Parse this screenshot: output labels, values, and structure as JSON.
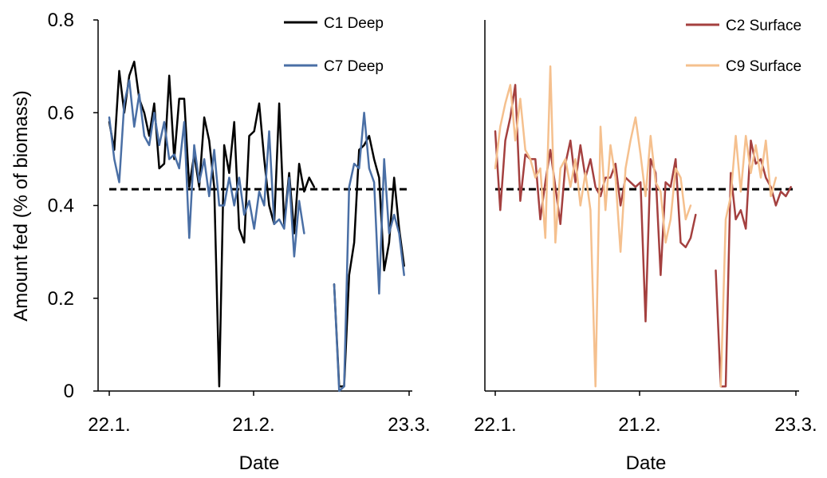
{
  "chart_data": [
    {
      "type": "line",
      "panel": "left",
      "xlabel": "Date",
      "ylabel": "Amount fed (% of biomass)",
      "x_tick_labels": [
        "22.1.",
        "21.2.",
        "23.3."
      ],
      "y_tick_labels": [
        "0",
        "0.2",
        "0.4",
        "0.6",
        "0.8"
      ],
      "ylim": [
        0,
        0.8
      ],
      "xlim": [
        "22.1.",
        "23.3."
      ],
      "x_unit": "day index from 22.1. (0 = 22.1., 30 = 21.2., 60 = 23.3.)",
      "reference_line": {
        "y": 0.435,
        "style": "dashed",
        "color": "#000000"
      },
      "legend_position": "top-right",
      "series": [
        {
          "name": "C1 Deep",
          "color": "#000000",
          "segments": [
            [
              [
                0,
                0.58
              ],
              [
                1,
                0.52
              ],
              [
                2,
                0.69
              ],
              [
                3,
                0.6
              ],
              [
                4,
                0.68
              ],
              [
                5,
                0.71
              ],
              [
                6,
                0.63
              ],
              [
                7,
                0.6
              ],
              [
                8,
                0.55
              ],
              [
                9,
                0.62
              ],
              [
                10,
                0.48
              ],
              [
                11,
                0.49
              ],
              [
                12,
                0.68
              ],
              [
                13,
                0.5
              ],
              [
                14,
                0.63
              ],
              [
                15,
                0.63
              ],
              [
                16,
                0.44
              ],
              [
                17,
                0.51
              ],
              [
                18,
                0.44
              ],
              [
                19,
                0.59
              ],
              [
                20,
                0.54
              ],
              [
                21,
                0.44
              ],
              [
                22,
                0.01
              ],
              [
                23,
                0.53
              ],
              [
                24,
                0.47
              ],
              [
                25,
                0.58
              ],
              [
                26,
                0.35
              ],
              [
                27,
                0.32
              ],
              [
                28,
                0.55
              ],
              [
                29,
                0.56
              ],
              [
                30,
                0.62
              ],
              [
                31,
                0.5
              ],
              [
                32,
                0.4
              ],
              [
                33,
                0.36
              ],
              [
                34,
                0.62
              ],
              [
                35,
                0.36
              ],
              [
                36,
                0.47
              ],
              [
                37,
                0.34
              ],
              [
                38,
                0.49
              ],
              [
                39,
                0.43
              ],
              [
                40,
                0.46
              ],
              [
                41,
                0.44
              ]
            ],
            [
              [
                45,
                0.23
              ],
              [
                46,
                0.01
              ],
              [
                47,
                0.01
              ],
              [
                48,
                0.25
              ],
              [
                49,
                0.32
              ],
              [
                50,
                0.52
              ],
              [
                51,
                0.53
              ],
              [
                52,
                0.55
              ],
              [
                53,
                0.5
              ],
              [
                54,
                0.46
              ],
              [
                55,
                0.26
              ],
              [
                56,
                0.32
              ],
              [
                57,
                0.46
              ],
              [
                58,
                0.35
              ],
              [
                59,
                0.27
              ]
            ]
          ]
        },
        {
          "name": "C7 Deep",
          "color": "#4a6fa5",
          "segments": [
            [
              [
                0,
                0.59
              ],
              [
                1,
                0.5
              ],
              [
                2,
                0.45
              ],
              [
                3,
                0.62
              ],
              [
                4,
                0.67
              ],
              [
                5,
                0.57
              ],
              [
                6,
                0.64
              ],
              [
                7,
                0.55
              ],
              [
                8,
                0.53
              ],
              [
                9,
                0.6
              ],
              [
                10,
                0.53
              ],
              [
                11,
                0.58
              ],
              [
                12,
                0.5
              ],
              [
                13,
                0.51
              ],
              [
                14,
                0.48
              ],
              [
                15,
                0.58
              ],
              [
                16,
                0.33
              ],
              [
                17,
                0.53
              ],
              [
                18,
                0.45
              ],
              [
                19,
                0.5
              ],
              [
                20,
                0.42
              ],
              [
                21,
                0.52
              ],
              [
                22,
                0.4
              ],
              [
                23,
                0.4
              ],
              [
                24,
                0.46
              ],
              [
                25,
                0.4
              ],
              [
                26,
                0.46
              ],
              [
                27,
                0.38
              ],
              [
                28,
                0.41
              ],
              [
                29,
                0.35
              ],
              [
                30,
                0.43
              ],
              [
                31,
                0.4
              ],
              [
                32,
                0.56
              ],
              [
                33,
                0.36
              ],
              [
                34,
                0.37
              ],
              [
                35,
                0.35
              ],
              [
                36,
                0.46
              ],
              [
                37,
                0.29
              ],
              [
                38,
                0.41
              ],
              [
                39,
                0.34
              ]
            ],
            [
              [
                45,
                0.23
              ],
              [
                46,
                0.0
              ],
              [
                47,
                0.01
              ],
              [
                48,
                0.44
              ],
              [
                49,
                0.49
              ],
              [
                50,
                0.48
              ],
              [
                51,
                0.6
              ],
              [
                52,
                0.48
              ],
              [
                53,
                0.45
              ],
              [
                54,
                0.21
              ],
              [
                55,
                0.5
              ],
              [
                56,
                0.34
              ],
              [
                57,
                0.38
              ],
              [
                58,
                0.34
              ],
              [
                59,
                0.25
              ]
            ]
          ]
        }
      ]
    },
    {
      "type": "line",
      "panel": "right",
      "xlabel": "Date",
      "ylabel": "",
      "x_tick_labels": [
        "22.1.",
        "21.2.",
        "23.3."
      ],
      "ylim": [
        0,
        0.8
      ],
      "xlim": [
        "22.1.",
        "23.3."
      ],
      "x_unit": "day index from 22.1. (0 = 22.1., 30 = 21.2., 60 = 23.3.)",
      "reference_line": {
        "y": 0.435,
        "style": "dashed",
        "color": "#000000"
      },
      "legend_position": "top-right",
      "series": [
        {
          "name": "C2 Surface",
          "color": "#a4403f",
          "segments": [
            [
              [
                0,
                0.56
              ],
              [
                1,
                0.39
              ],
              [
                2,
                0.54
              ],
              [
                3,
                0.59
              ],
              [
                4,
                0.66
              ],
              [
                5,
                0.41
              ],
              [
                6,
                0.51
              ],
              [
                7,
                0.5
              ],
              [
                8,
                0.5
              ],
              [
                9,
                0.37
              ],
              [
                10,
                0.45
              ],
              [
                11,
                0.52
              ],
              [
                12,
                0.44
              ],
              [
                13,
                0.36
              ],
              [
                14,
                0.49
              ],
              [
                15,
                0.54
              ],
              [
                16,
                0.45
              ],
              [
                17,
                0.53
              ],
              [
                18,
                0.46
              ],
              [
                19,
                0.5
              ],
              [
                20,
                0.44
              ],
              [
                21,
                0.42
              ],
              [
                22,
                0.46
              ],
              [
                23,
                0.46
              ],
              [
                24,
                0.49
              ],
              [
                25,
                0.4
              ],
              [
                26,
                0.46
              ],
              [
                27,
                0.45
              ],
              [
                28,
                0.44
              ],
              [
                29,
                0.45
              ],
              [
                30,
                0.15
              ],
              [
                31,
                0.5
              ],
              [
                32,
                0.47
              ],
              [
                33,
                0.25
              ],
              [
                34,
                0.45
              ],
              [
                35,
                0.44
              ],
              [
                36,
                0.5
              ],
              [
                37,
                0.32
              ],
              [
                38,
                0.31
              ],
              [
                39,
                0.33
              ],
              [
                40,
                0.38
              ]
            ],
            [
              [
                44,
                0.26
              ],
              [
                45,
                0.01
              ],
              [
                46,
                0.01
              ],
              [
                47,
                0.47
              ],
              [
                48,
                0.37
              ],
              [
                49,
                0.39
              ],
              [
                50,
                0.35
              ],
              [
                51,
                0.54
              ],
              [
                52,
                0.49
              ],
              [
                53,
                0.5
              ],
              [
                54,
                0.46
              ],
              [
                55,
                0.44
              ],
              [
                56,
                0.4
              ],
              [
                57,
                0.43
              ],
              [
                58,
                0.42
              ],
              [
                59,
                0.44
              ]
            ]
          ]
        },
        {
          "name": "C9 Surface",
          "color": "#f5c08e",
          "segments": [
            [
              [
                0,
                0.48
              ],
              [
                1,
                0.57
              ],
              [
                2,
                0.62
              ],
              [
                3,
                0.66
              ],
              [
                4,
                0.54
              ],
              [
                5,
                0.63
              ],
              [
                6,
                0.52
              ],
              [
                7,
                0.5
              ],
              [
                8,
                0.46
              ],
              [
                9,
                0.48
              ],
              [
                10,
                0.33
              ],
              [
                11,
                0.7
              ],
              [
                12,
                0.32
              ],
              [
                13,
                0.48
              ],
              [
                14,
                0.5
              ],
              [
                15,
                0.44
              ],
              [
                16,
                0.5
              ],
              [
                17,
                0.4
              ],
              [
                18,
                0.47
              ],
              [
                19,
                0.39
              ],
              [
                20,
                0.01
              ],
              [
                21,
                0.57
              ],
              [
                22,
                0.39
              ],
              [
                23,
                0.53
              ],
              [
                24,
                0.46
              ],
              [
                25,
                0.3
              ],
              [
                26,
                0.48
              ],
              [
                27,
                0.54
              ],
              [
                28,
                0.59
              ],
              [
                29,
                0.51
              ],
              [
                30,
                0.42
              ],
              [
                31,
                0.55
              ],
              [
                32,
                0.45
              ],
              [
                33,
                0.43
              ],
              [
                34,
                0.32
              ],
              [
                35,
                0.37
              ],
              [
                36,
                0.48
              ],
              [
                37,
                0.46
              ],
              [
                38,
                0.37
              ],
              [
                39,
                0.4
              ]
            ],
            [
              [
                45,
                0.01
              ],
              [
                46,
                0.37
              ],
              [
                47,
                0.42
              ],
              [
                48,
                0.55
              ],
              [
                49,
                0.43
              ],
              [
                50,
                0.55
              ],
              [
                51,
                0.47
              ],
              [
                52,
                0.53
              ],
              [
                53,
                0.46
              ],
              [
                54,
                0.54
              ],
              [
                55,
                0.42
              ],
              [
                56,
                0.46
              ]
            ]
          ]
        }
      ]
    }
  ]
}
